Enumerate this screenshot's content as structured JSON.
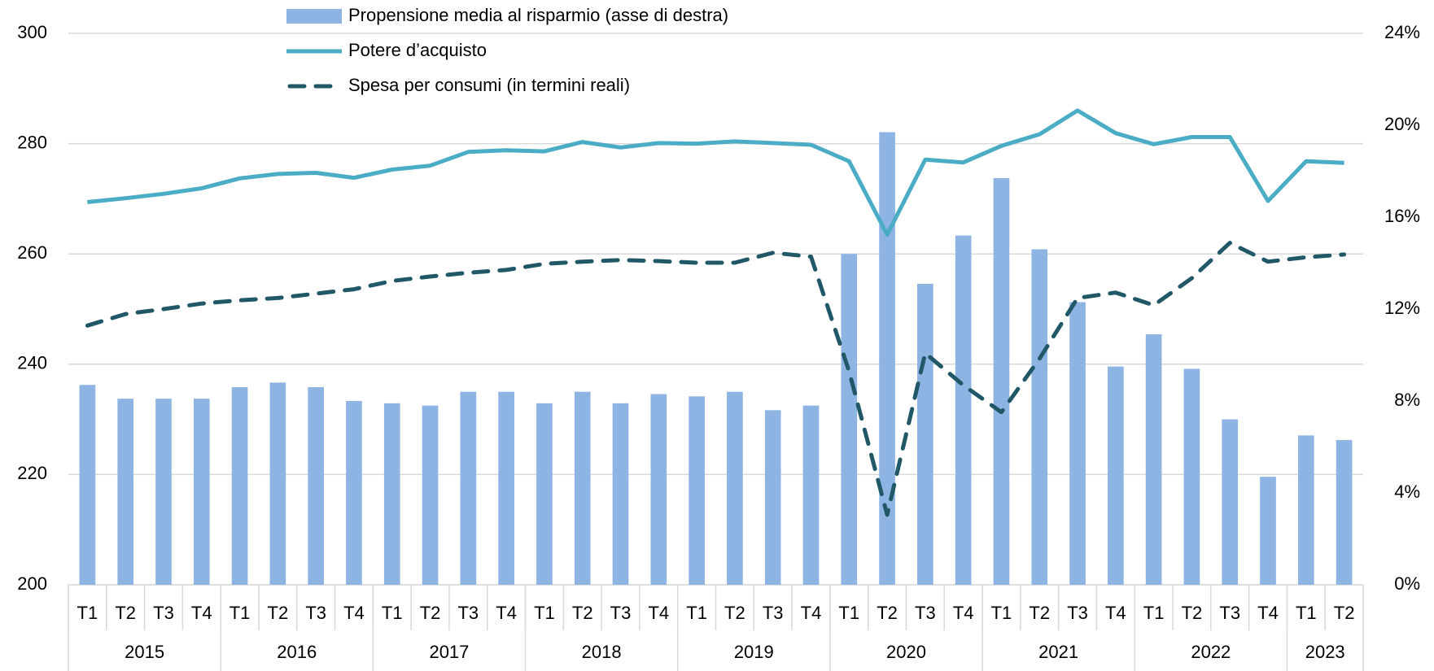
{
  "chart_data": {
    "type": "bar-line",
    "groups": [
      {
        "name": "2015",
        "categories": [
          "T1",
          "T2",
          "T3",
          "T4"
        ]
      },
      {
        "name": "2016",
        "categories": [
          "T1",
          "T2",
          "T3",
          "T4"
        ]
      },
      {
        "name": "2017",
        "categories": [
          "T1",
          "T2",
          "T3",
          "T4"
        ]
      },
      {
        "name": "2018",
        "categories": [
          "T1",
          "T2",
          "T3",
          "T4"
        ]
      },
      {
        "name": "2019",
        "categories": [
          "T1",
          "T2",
          "T3",
          "T4"
        ]
      },
      {
        "name": "2020",
        "categories": [
          "T1",
          "T2",
          "T3",
          "T4"
        ]
      },
      {
        "name": "2021",
        "categories": [
          "T1",
          "T2",
          "T3",
          "T4"
        ]
      },
      {
        "name": "2022",
        "categories": [
          "T1",
          "T2",
          "T3",
          "T4"
        ]
      },
      {
        "name": "2023",
        "categories": [
          "T1",
          "T2"
        ]
      }
    ],
    "series": [
      {
        "name": "Propensione media al risparmio (asse di destra)",
        "type": "bar",
        "axis": "y2",
        "color": "#8eb4e3",
        "values": [
          8.7,
          8.1,
          8.1,
          8.1,
          8.6,
          8.8,
          8.6,
          8.0,
          7.9,
          7.8,
          8.4,
          8.4,
          7.9,
          8.4,
          7.9,
          8.3,
          8.2,
          8.4,
          7.6,
          7.8,
          14.4,
          19.7,
          13.1,
          15.2,
          17.7,
          14.6,
          12.3,
          9.5,
          10.9,
          9.4,
          7.2,
          4.7,
          6.5,
          6.3
        ]
      },
      {
        "name": "Potere d’acquisto",
        "type": "line",
        "color": "#4bacc6",
        "values": [
          269.4,
          270.1,
          270.9,
          271.9,
          273.7,
          274.5,
          274.7,
          273.8,
          275.3,
          276.0,
          278.5,
          278.8,
          278.6,
          280.3,
          279.3,
          280.1,
          280.0,
          280.4,
          280.1,
          279.8,
          276.8,
          263.5,
          277.1,
          276.6,
          279.6,
          281.7,
          286.0,
          281.9,
          279.9,
          281.2,
          281.2,
          269.6,
          276.8,
          276.5
        ]
      },
      {
        "name": "Spesa per consumi (in termini reali)",
        "type": "line",
        "dashed": true,
        "color": "#215868",
        "values": [
          247.0,
          249.1,
          250.0,
          251.0,
          251.6,
          252.0,
          252.8,
          253.6,
          255.1,
          255.9,
          256.6,
          257.1,
          258.2,
          258.6,
          258.9,
          258.7,
          258.4,
          258.4,
          260.2,
          259.5,
          238.7,
          212.7,
          242.0,
          236.2,
          231.3,
          241.0,
          252.0,
          253.0,
          250.7,
          255.6,
          262.0,
          258.6,
          259.4,
          259.9
        ]
      }
    ],
    "ylim": [
      200,
      300
    ],
    "yticks": [
      200,
      220,
      240,
      260,
      280,
      300
    ],
    "y2lim": [
      0,
      24
    ],
    "y2ticks": [
      {
        "value": 0,
        "label": "0%"
      },
      {
        "value": 4,
        "label": "4%"
      },
      {
        "value": 8,
        "label": "8%"
      },
      {
        "value": 12,
        "label": "12%"
      },
      {
        "value": 16,
        "label": "16%"
      },
      {
        "value": 20,
        "label": "20%"
      },
      {
        "value": 24,
        "label": "24%"
      }
    ],
    "grid": true
  }
}
